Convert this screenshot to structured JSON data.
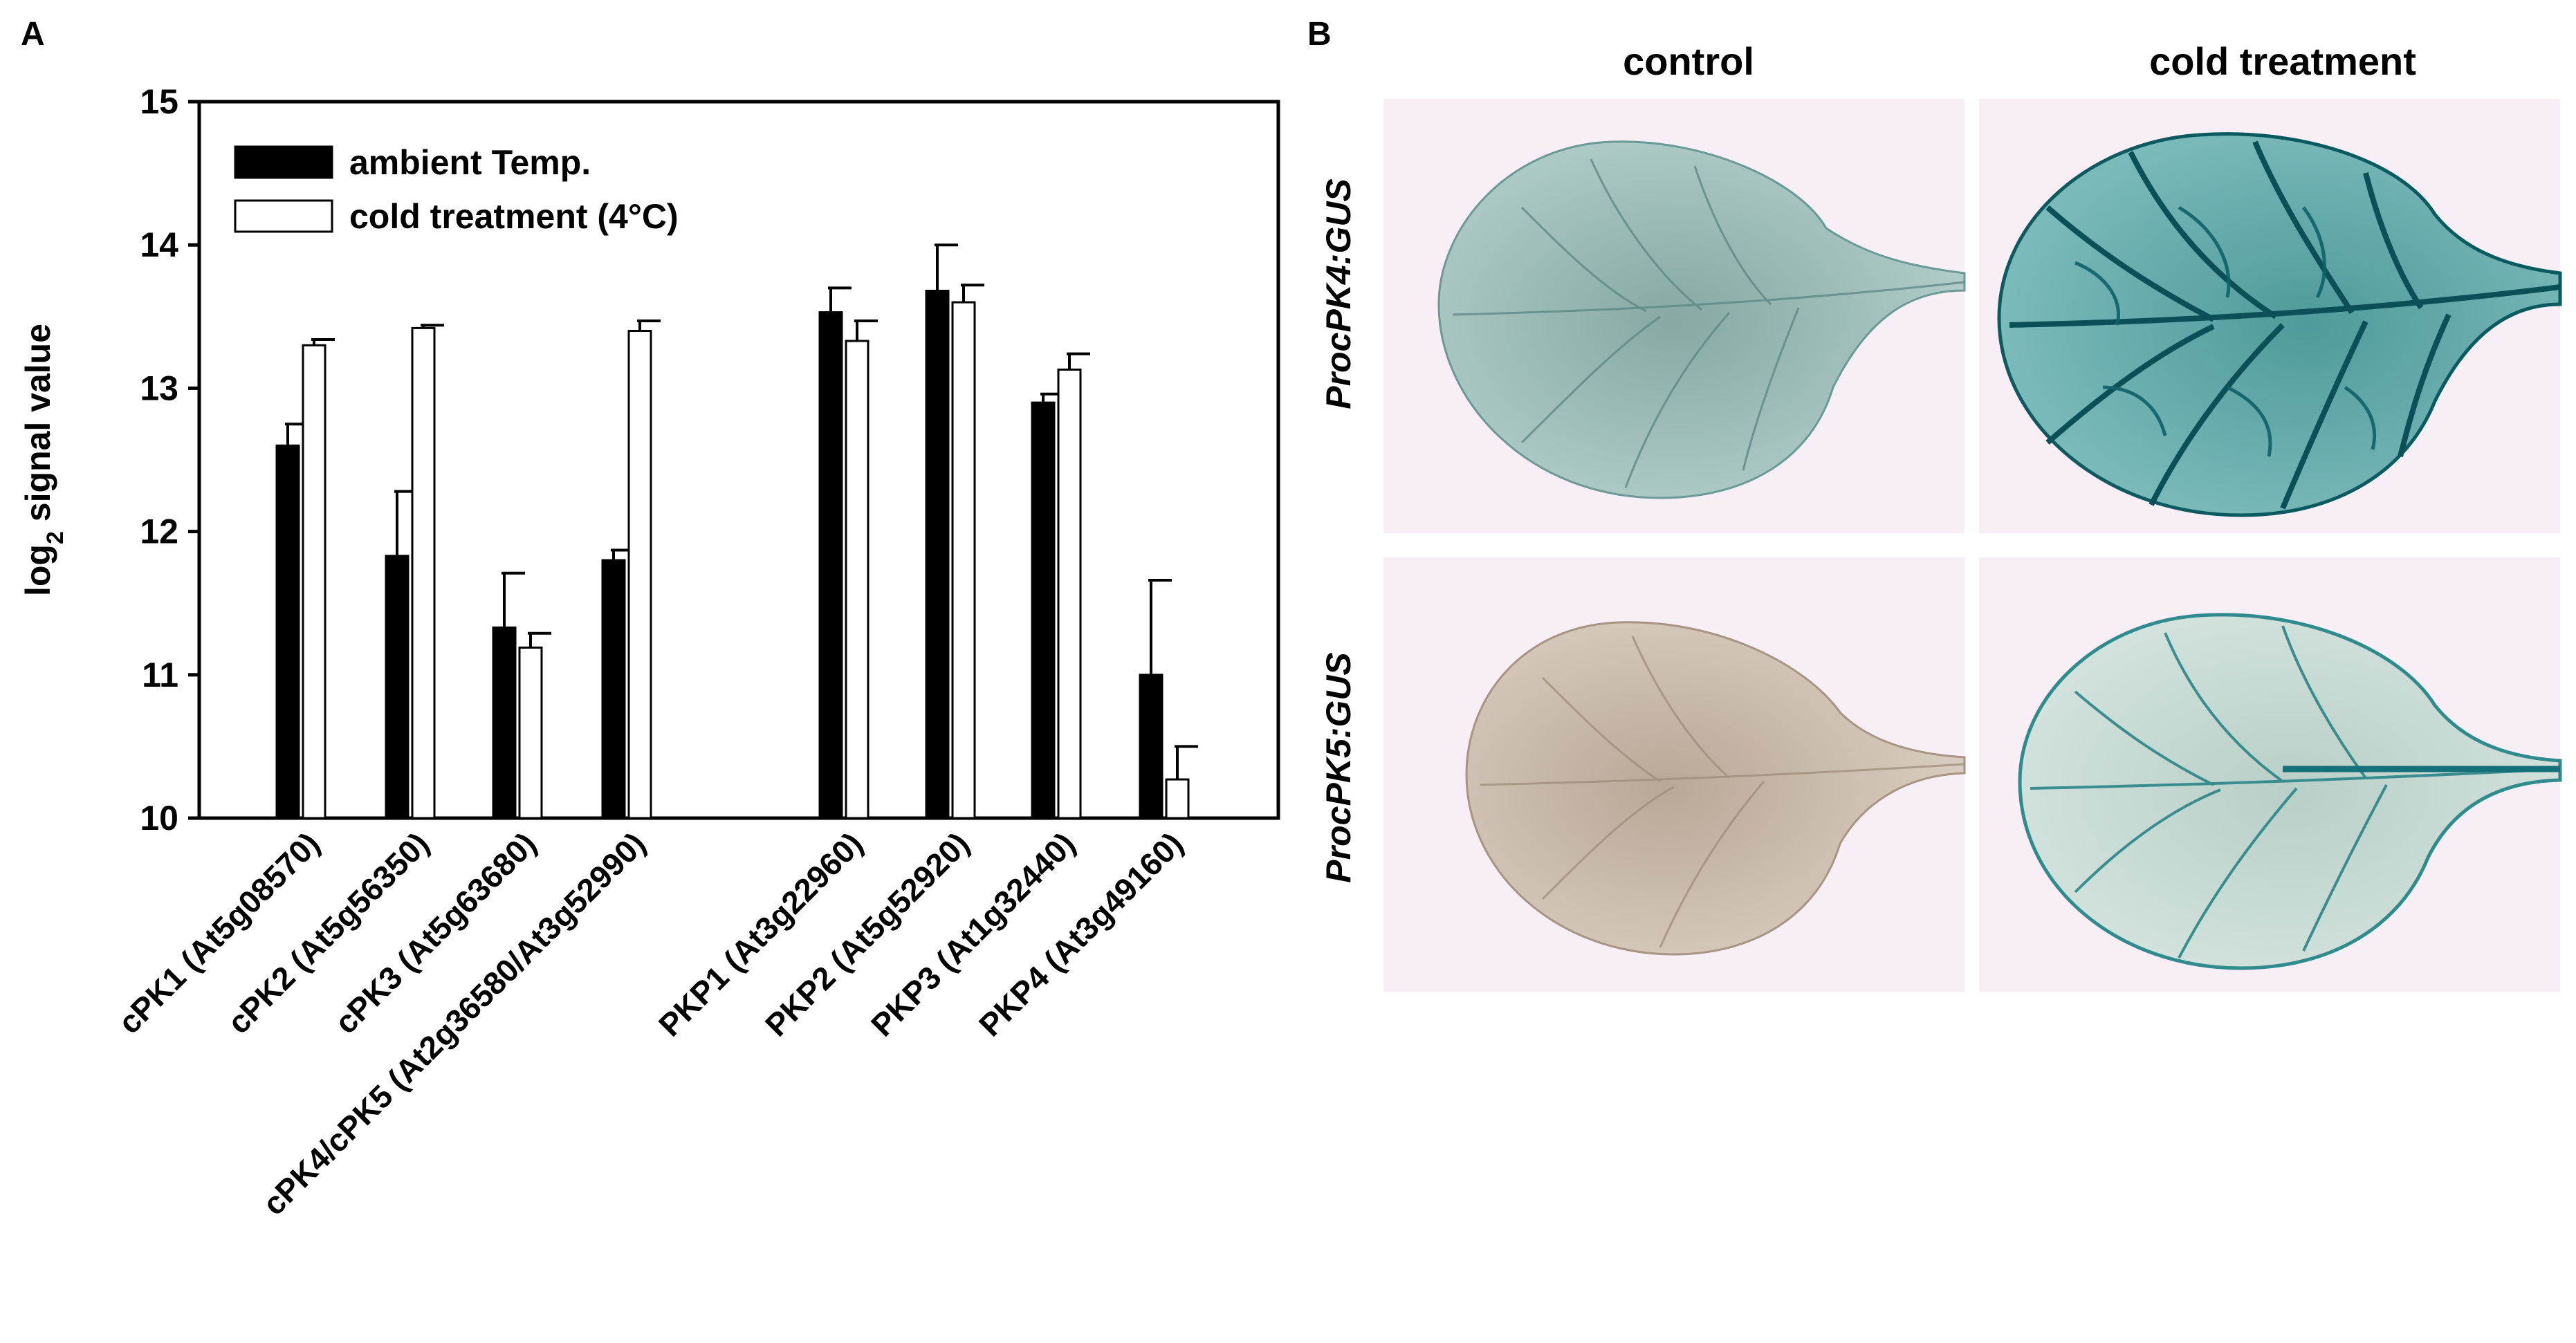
{
  "panel_a_label": "A",
  "panel_b_label": "B",
  "colors": {
    "ambient": "#000000",
    "cold": "#ffffff",
    "photo_bg": "#f7eef6",
    "stain_light": "#7fb8b5",
    "stain_dark": "#0b5a60",
    "leaf_control_pk5": "#c8b9a8"
  },
  "chart_data": {
    "type": "bar",
    "title": "",
    "xlabel": "",
    "ylabel_main": "log",
    "ylabel_sub": "2",
    "ylabel_rest": " signal value",
    "ylim": [
      10,
      15
    ],
    "yticks": [
      10,
      11,
      12,
      13,
      14,
      15
    ],
    "legend_position": "top-left",
    "categories": [
      "cPK1 (At5g08570)",
      "cPK2 (At5g56350)",
      "cPK3 (At5g63680)",
      "cPK4/cPK5 (At2g36580/At3g52990)",
      "PKP1 (At3g22960)",
      "PKP2 (At5g52920)",
      "PKP3 (At1g32440)",
      "PKP4 (At3g49160)"
    ],
    "series": [
      {
        "name": "ambient Temp.",
        "color": "#000000",
        "values": [
          12.6,
          11.83,
          11.33,
          11.8,
          13.53,
          13.68,
          12.9,
          11.0
        ],
        "errors": [
          0.15,
          0.45,
          0.38,
          0.07,
          0.17,
          0.32,
          0.06,
          0.66
        ]
      },
      {
        "name": "cold treatment (4°C)",
        "color": "#ffffff",
        "values": [
          13.3,
          13.42,
          11.19,
          13.4,
          13.33,
          13.6,
          13.13,
          10.27
        ],
        "errors": [
          0.04,
          0.02,
          0.1,
          0.07,
          0.14,
          0.12,
          0.11,
          0.23
        ]
      }
    ]
  },
  "panel_b": {
    "columns": [
      "control",
      "cold treatment"
    ],
    "rows": [
      "ProcPK4:GUS",
      "ProcPK5:GUS"
    ]
  }
}
